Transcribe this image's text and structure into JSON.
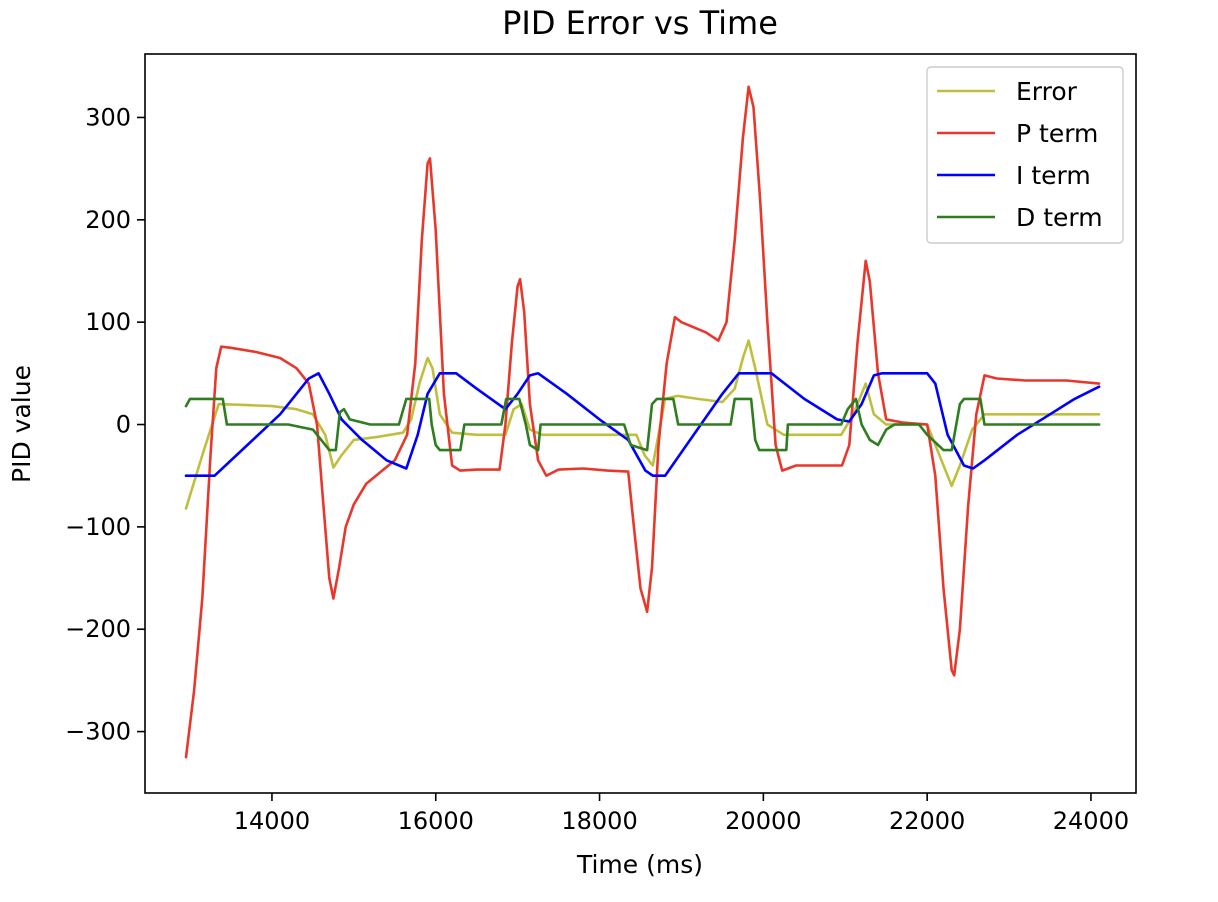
{
  "chart_data": {
    "type": "line",
    "title": "PID Error vs Time",
    "xlabel": "Time (ms)",
    "ylabel": "PID value",
    "xlim": [
      12450,
      24550
    ],
    "ylim": [
      -360,
      362
    ],
    "xticks": [
      14000,
      16000,
      18000,
      20000,
      22000,
      24000
    ],
    "yticks": [
      -300,
      -200,
      -100,
      0,
      100,
      200,
      300
    ],
    "ytick_labels": [
      "−300",
      "−200",
      "−100",
      "0",
      "100",
      "200",
      "300"
    ],
    "grid": false,
    "legend_position": "top-right",
    "series": [
      {
        "name": "Error",
        "color": "#bfbf3f",
        "points": [
          [
            12950,
            -82
          ],
          [
            13150,
            -30
          ],
          [
            13350,
            20
          ],
          [
            13700,
            19
          ],
          [
            14000,
            18
          ],
          [
            14300,
            15
          ],
          [
            14500,
            10
          ],
          [
            14650,
            -10
          ],
          [
            14750,
            -42
          ],
          [
            14850,
            -30
          ],
          [
            15000,
            -15
          ],
          [
            15300,
            -12
          ],
          [
            15600,
            -8
          ],
          [
            15700,
            5
          ],
          [
            15800,
            40
          ],
          [
            15900,
            65
          ],
          [
            15960,
            55
          ],
          [
            16050,
            10
          ],
          [
            16200,
            -8
          ],
          [
            16500,
            -10
          ],
          [
            16850,
            -10
          ],
          [
            16950,
            15
          ],
          [
            17050,
            20
          ],
          [
            17150,
            -5
          ],
          [
            17300,
            -10
          ],
          [
            17600,
            -10
          ],
          [
            18000,
            -10
          ],
          [
            18300,
            -10
          ],
          [
            18450,
            -10
          ],
          [
            18550,
            -30
          ],
          [
            18650,
            -40
          ],
          [
            18800,
            25
          ],
          [
            18950,
            28
          ],
          [
            19200,
            25
          ],
          [
            19500,
            22
          ],
          [
            19650,
            35
          ],
          [
            19750,
            65
          ],
          [
            19820,
            82
          ],
          [
            19900,
            55
          ],
          [
            20050,
            0
          ],
          [
            20250,
            -10
          ],
          [
            20600,
            -10
          ],
          [
            20950,
            -10
          ],
          [
            21100,
            10
          ],
          [
            21250,
            40
          ],
          [
            21350,
            10
          ],
          [
            21500,
            0
          ],
          [
            21800,
            0
          ],
          [
            22000,
            0
          ],
          [
            22150,
            -30
          ],
          [
            22300,
            -60
          ],
          [
            22400,
            -40
          ],
          [
            22550,
            -5
          ],
          [
            22700,
            10
          ],
          [
            23000,
            10
          ],
          [
            23500,
            10
          ],
          [
            24100,
            10
          ]
        ]
      },
      {
        "name": "P term",
        "color": "#e8382c",
        "points": [
          [
            12950,
            -325
          ],
          [
            13050,
            -260
          ],
          [
            13150,
            -170
          ],
          [
            13250,
            -30
          ],
          [
            13320,
            55
          ],
          [
            13380,
            76
          ],
          [
            13500,
            75
          ],
          [
            13800,
            71
          ],
          [
            14100,
            65
          ],
          [
            14300,
            55
          ],
          [
            14450,
            40
          ],
          [
            14550,
            0
          ],
          [
            14620,
            -70
          ],
          [
            14700,
            -150
          ],
          [
            14750,
            -170
          ],
          [
            14820,
            -140
          ],
          [
            14900,
            -100
          ],
          [
            15000,
            -78
          ],
          [
            15150,
            -58
          ],
          [
            15300,
            -48
          ],
          [
            15500,
            -35
          ],
          [
            15650,
            -10
          ],
          [
            15750,
            60
          ],
          [
            15830,
            180
          ],
          [
            15900,
            255
          ],
          [
            15930,
            260
          ],
          [
            16000,
            190
          ],
          [
            16100,
            30
          ],
          [
            16200,
            -40
          ],
          [
            16300,
            -45
          ],
          [
            16500,
            -44
          ],
          [
            16780,
            -44
          ],
          [
            16850,
            0
          ],
          [
            16930,
            80
          ],
          [
            17000,
            135
          ],
          [
            17030,
            142
          ],
          [
            17080,
            110
          ],
          [
            17150,
            20
          ],
          [
            17250,
            -35
          ],
          [
            17350,
            -50
          ],
          [
            17500,
            -44
          ],
          [
            17800,
            -43
          ],
          [
            18100,
            -45
          ],
          [
            18350,
            -46
          ],
          [
            18420,
            -100
          ],
          [
            18500,
            -160
          ],
          [
            18580,
            -183
          ],
          [
            18640,
            -140
          ],
          [
            18720,
            -20
          ],
          [
            18820,
            60
          ],
          [
            18920,
            105
          ],
          [
            19000,
            100
          ],
          [
            19150,
            95
          ],
          [
            19300,
            90
          ],
          [
            19450,
            82
          ],
          [
            19550,
            100
          ],
          [
            19650,
            180
          ],
          [
            19750,
            280
          ],
          [
            19820,
            330
          ],
          [
            19880,
            310
          ],
          [
            19960,
            220
          ],
          [
            20050,
            100
          ],
          [
            20150,
            -20
          ],
          [
            20230,
            -45
          ],
          [
            20400,
            -40
          ],
          [
            20700,
            -40
          ],
          [
            20960,
            -40
          ],
          [
            21050,
            -20
          ],
          [
            21150,
            80
          ],
          [
            21250,
            160
          ],
          [
            21300,
            140
          ],
          [
            21400,
            50
          ],
          [
            21500,
            5
          ],
          [
            21700,
            2
          ],
          [
            22000,
            0
          ],
          [
            22100,
            -50
          ],
          [
            22200,
            -160
          ],
          [
            22300,
            -240
          ],
          [
            22330,
            -245
          ],
          [
            22400,
            -200
          ],
          [
            22500,
            -80
          ],
          [
            22600,
            10
          ],
          [
            22700,
            48
          ],
          [
            22850,
            45
          ],
          [
            23200,
            43
          ],
          [
            23700,
            43
          ],
          [
            24100,
            40
          ]
        ]
      },
      {
        "name": "I term",
        "color": "#0000ff",
        "points": [
          [
            12950,
            -50
          ],
          [
            13300,
            -50
          ],
          [
            13700,
            -20
          ],
          [
            14100,
            10
          ],
          [
            14450,
            45
          ],
          [
            14570,
            50
          ],
          [
            14700,
            30
          ],
          [
            14850,
            5
          ],
          [
            15100,
            -15
          ],
          [
            15400,
            -35
          ],
          [
            15640,
            -43
          ],
          [
            15780,
            -10
          ],
          [
            15900,
            30
          ],
          [
            16050,
            50
          ],
          [
            16250,
            50
          ],
          [
            16500,
            35
          ],
          [
            16850,
            15
          ],
          [
            17000,
            30
          ],
          [
            17150,
            48
          ],
          [
            17250,
            50
          ],
          [
            17600,
            30
          ],
          [
            18000,
            5
          ],
          [
            18350,
            -15
          ],
          [
            18560,
            -45
          ],
          [
            18650,
            -50
          ],
          [
            18800,
            -50
          ],
          [
            19150,
            -10
          ],
          [
            19500,
            30
          ],
          [
            19700,
            50
          ],
          [
            20100,
            50
          ],
          [
            20500,
            25
          ],
          [
            20900,
            5
          ],
          [
            21050,
            3
          ],
          [
            21200,
            20
          ],
          [
            21350,
            48
          ],
          [
            21450,
            50
          ],
          [
            22000,
            50
          ],
          [
            22100,
            40
          ],
          [
            22250,
            -10
          ],
          [
            22450,
            -40
          ],
          [
            22560,
            -43
          ],
          [
            22700,
            -35
          ],
          [
            23100,
            -10
          ],
          [
            23500,
            10
          ],
          [
            23800,
            25
          ],
          [
            24100,
            37
          ]
        ]
      },
      {
        "name": "D term",
        "color": "#2e7d1e",
        "points": [
          [
            12950,
            18
          ],
          [
            13000,
            25
          ],
          [
            13400,
            25
          ],
          [
            13450,
            0
          ],
          [
            13800,
            0
          ],
          [
            14200,
            0
          ],
          [
            14500,
            -5
          ],
          [
            14700,
            -25
          ],
          [
            14780,
            -25
          ],
          [
            14830,
            12
          ],
          [
            14880,
            15
          ],
          [
            14950,
            5
          ],
          [
            15200,
            0
          ],
          [
            15550,
            0
          ],
          [
            15640,
            25
          ],
          [
            15920,
            25
          ],
          [
            15950,
            0
          ],
          [
            16000,
            -20
          ],
          [
            16050,
            -25
          ],
          [
            16300,
            -25
          ],
          [
            16350,
            0
          ],
          [
            16800,
            0
          ],
          [
            16860,
            25
          ],
          [
            17020,
            25
          ],
          [
            17100,
            0
          ],
          [
            17150,
            -20
          ],
          [
            17250,
            -25
          ],
          [
            17280,
            0
          ],
          [
            17700,
            0
          ],
          [
            18000,
            0
          ],
          [
            18300,
            0
          ],
          [
            18380,
            -20
          ],
          [
            18580,
            -25
          ],
          [
            18640,
            20
          ],
          [
            18700,
            25
          ],
          [
            18900,
            25
          ],
          [
            18960,
            0
          ],
          [
            19300,
            0
          ],
          [
            19600,
            0
          ],
          [
            19650,
            25
          ],
          [
            19850,
            25
          ],
          [
            19900,
            -15
          ],
          [
            19950,
            -25
          ],
          [
            20280,
            -25
          ],
          [
            20300,
            0
          ],
          [
            20700,
            0
          ],
          [
            20950,
            0
          ],
          [
            21030,
            15
          ],
          [
            21130,
            25
          ],
          [
            21200,
            0
          ],
          [
            21300,
            -15
          ],
          [
            21400,
            -20
          ],
          [
            21500,
            -5
          ],
          [
            21600,
            0
          ],
          [
            21900,
            0
          ],
          [
            22000,
            -10
          ],
          [
            22200,
            -25
          ],
          [
            22300,
            -25
          ],
          [
            22400,
            20
          ],
          [
            22450,
            25
          ],
          [
            22650,
            25
          ],
          [
            22700,
            0
          ],
          [
            23200,
            0
          ],
          [
            23700,
            0
          ],
          [
            24100,
            0
          ]
        ]
      }
    ]
  }
}
